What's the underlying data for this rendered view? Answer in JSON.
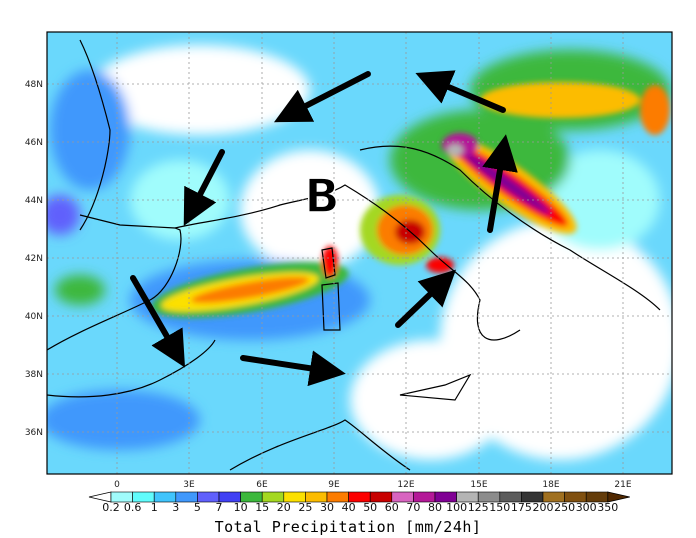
{
  "map": {
    "lat_labels": [
      "48N",
      "46N",
      "44N",
      "42N",
      "40N",
      "38N",
      "36N"
    ],
    "lon_labels": [
      "0",
      "3E",
      "6E",
      "9E",
      "12E",
      "15E",
      "18E",
      "21E"
    ],
    "annotation_letter": "B",
    "arrow_color": "#000000"
  },
  "colorbar": {
    "title": "Total Precipitation [mm/24h]",
    "labels": [
      "0.2",
      "0.6",
      "1",
      "3",
      "5",
      "7",
      "10",
      "15",
      "20",
      "25",
      "30",
      "40",
      "50",
      "60",
      "70",
      "80",
      "100",
      "125",
      "150",
      "175",
      "200",
      "250",
      "300",
      "350"
    ],
    "colors": [
      "#a0fcfc",
      "#60fcfc",
      "#40c4fc",
      "#4098fc",
      "#6060fc",
      "#4040f4",
      "#3cb83c",
      "#a4d820",
      "#fce000",
      "#fcbc00",
      "#fc7c00",
      "#fc0000",
      "#c80000",
      "#d864c0",
      "#b41898",
      "#800094",
      "#b4b4b4",
      "#8c8c8c",
      "#5c5c5c",
      "#343434",
      "#a07020",
      "#805010",
      "#643c0a",
      "#502800"
    ],
    "low_end_color": "#ffffff",
    "high_end_color": "#502800"
  }
}
